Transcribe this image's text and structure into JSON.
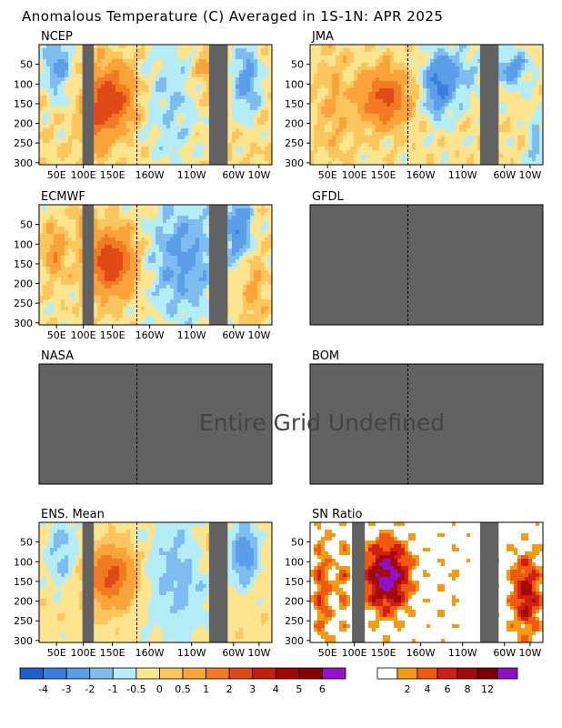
{
  "title": "Anomalous Temperature (C) Averaged in 1S-1N: APR 2025",
  "undefined_message": "Entire Grid Undefined",
  "colors": {
    "masked": "#626262",
    "anom_scale": [
      "#1f5fcf",
      "#3a7ee0",
      "#5a9de8",
      "#7fbdf0",
      "#b4ecf8",
      "#fde58f",
      "#fbc65e",
      "#f9a33a",
      "#f27a23",
      "#e04a17",
      "#c81e0e",
      "#a10705",
      "#8e0000",
      "#9a0fd0"
    ],
    "snr_scale": [
      "#ffffff",
      "#f59a12",
      "#ef5a10",
      "#d02016",
      "#a40a08",
      "#7c0000",
      "#9010c8"
    ]
  },
  "chart_data": [
    {
      "type": "heatmap",
      "panel": "NCEP",
      "defined": true,
      "x_ticks": [
        "50E",
        "100E",
        "150E",
        "160W",
        "110W",
        "60W",
        "10W"
      ],
      "y_ticks": [
        "50",
        "100",
        "150",
        "200",
        "250",
        "300"
      ],
      "y_range": [
        0,
        305
      ],
      "masked_longitudes": [
        "100E",
        "60W"
      ],
      "dateline_marker": "180",
      "dominant_pattern": [
        {
          "region": "120E-170E, 75-250",
          "anomaly_c": 2.5
        },
        {
          "region": "40E-70E, 20-100",
          "anomaly_c": -1.0
        },
        {
          "region": "180-130W, 50-300",
          "anomaly_c": -0.5
        },
        {
          "region": "70W-10W, 50-150",
          "anomaly_c": -1.0
        }
      ]
    },
    {
      "type": "heatmap",
      "panel": "JMA",
      "defined": true,
      "x_ticks": [
        "50E",
        "100E",
        "150E",
        "160W",
        "110W",
        "60W",
        "10W"
      ],
      "y_ticks": [
        "50",
        "100",
        "150",
        "200",
        "250",
        "300"
      ],
      "y_range": [
        0,
        305
      ],
      "masked_longitudes": [
        "60W"
      ],
      "dateline_marker": "180",
      "dominant_pattern": [
        {
          "region": "120E-170E, 75-230",
          "anomaly_c": 2.0
        },
        {
          "region": "170W-120W, 50-150",
          "anomaly_c": -1.5
        },
        {
          "region": "50W-10W, 50-100",
          "anomaly_c": -1.0
        }
      ]
    },
    {
      "type": "heatmap",
      "panel": "ECMWF",
      "defined": true,
      "x_ticks": [
        "50E",
        "100E",
        "150E",
        "160W",
        "110W",
        "60W",
        "10W"
      ],
      "y_ticks": [
        "50",
        "100",
        "150",
        "200",
        "250",
        "300"
      ],
      "y_range": [
        0,
        305
      ],
      "masked_longitudes": [
        "100E",
        "60W"
      ],
      "dateline_marker": "180",
      "dominant_pattern": [
        {
          "region": "120E-170E, 75-250",
          "anomaly_c": 2.5
        },
        {
          "region": "170W-80W, 50-300",
          "anomaly_c": -1.0
        },
        {
          "region": "50W-10W, 50-150",
          "anomaly_c": -1.0
        }
      ]
    },
    {
      "type": "heatmap",
      "panel": "GFDL",
      "defined": false,
      "x_ticks": [],
      "y_ticks": [],
      "dateline_marker": "180"
    },
    {
      "type": "heatmap",
      "panel": "NASA",
      "defined": false,
      "x_ticks": [],
      "y_ticks": [],
      "dateline_marker": "180"
    },
    {
      "type": "heatmap",
      "panel": "BOM",
      "defined": false,
      "x_ticks": [],
      "y_ticks": [],
      "dateline_marker": "180"
    },
    {
      "type": "heatmap",
      "panel": "ENS. Mean",
      "defined": true,
      "x_ticks": [
        "50E",
        "100E",
        "150E",
        "160W",
        "110W",
        "60W",
        "10W"
      ],
      "y_ticks": [
        "50",
        "100",
        "150",
        "200",
        "250",
        "300"
      ],
      "y_range": [
        0,
        305
      ],
      "masked_longitudes": [
        "100E",
        "60W"
      ],
      "dateline_marker": "180",
      "dominant_pattern": [
        {
          "region": "120E-170E, 75-230",
          "anomaly_c": 2.0
        },
        {
          "region": "170W-90W, 50-300",
          "anomaly_c": -0.5
        },
        {
          "region": "50W-10W, 50-150",
          "anomaly_c": -1.0
        }
      ]
    },
    {
      "type": "heatmap",
      "panel": "SN Ratio",
      "defined": true,
      "x_ticks": [
        "50E",
        "100E",
        "150E",
        "160W",
        "110W",
        "60W",
        "10W"
      ],
      "y_ticks": [
        "50",
        "100",
        "150",
        "200",
        "250",
        "300"
      ],
      "y_range": [
        0,
        305
      ],
      "masked_longitudes": [
        "100E",
        "60W"
      ],
      "dateline_marker": "",
      "dominant_pattern": [
        {
          "region": "120E-170E, 75-250",
          "sn_ratio": 12
        },
        {
          "region": "40E-90E, 20-300",
          "sn_ratio": 4
        },
        {
          "region": "50W-10W, 100-300",
          "sn_ratio": 8
        }
      ]
    },
    {
      "type": "colorbar",
      "name": "anomaly",
      "tick_labels": [
        "-4",
        "-3",
        "-2",
        "-1",
        "-0.5",
        "0",
        "0.5",
        "1",
        "2",
        "3",
        "4",
        "5",
        "6"
      ]
    },
    {
      "type": "colorbar",
      "name": "sn_ratio",
      "tick_labels": [
        "2",
        "4",
        "6",
        "8",
        "12"
      ]
    }
  ]
}
